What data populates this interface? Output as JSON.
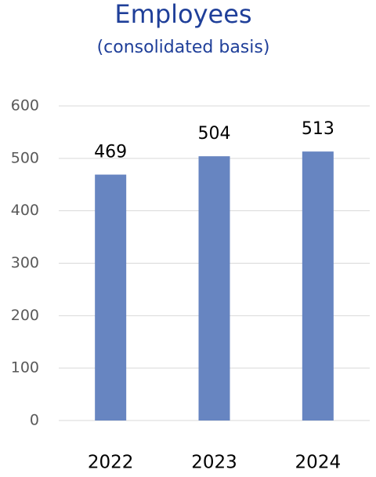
{
  "chart_data": {
    "type": "bar",
    "title": "Employees",
    "subtitle": "(consolidated basis)",
    "categories": [
      "2022",
      "2023",
      "2024"
    ],
    "values": [
      469,
      504,
      513
    ],
    "color": "#6785c1",
    "ylim": [
      0,
      600
    ],
    "yticks": [
      0,
      100,
      200,
      300,
      400,
      500,
      600
    ],
    "grid": true
  }
}
